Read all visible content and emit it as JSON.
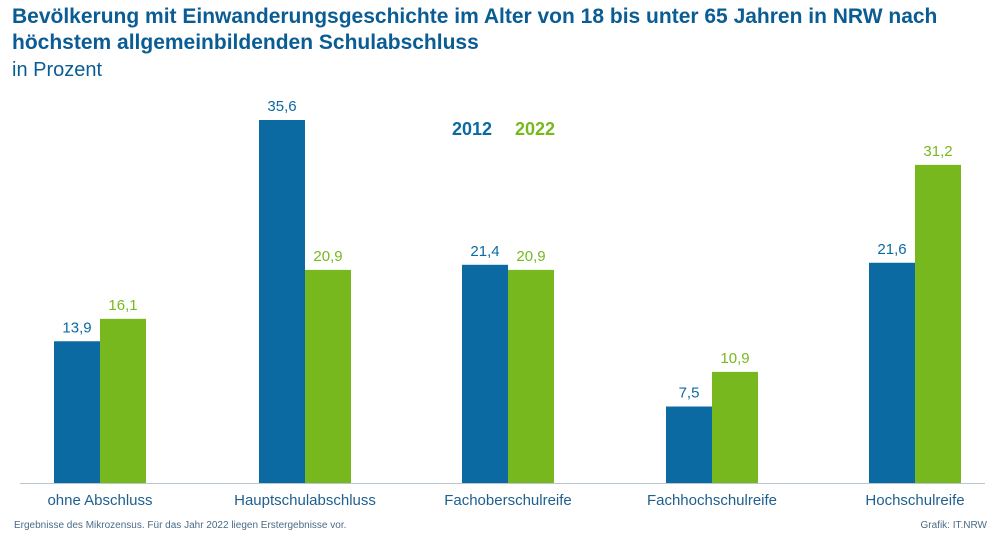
{
  "chart_data": {
    "type": "bar",
    "title": "Bevölkerung mit Einwanderungsgeschichte im Alter von 18 bis unter 65 Jahren in NRW nach höchstem allgemeinbildenden Schulabschluss",
    "subtitle": "in Prozent",
    "categories": [
      "ohne Abschluss",
      "Hauptschulabschluss",
      "Fachoberschulreife",
      "Fachhochschulreife",
      "Hochschulreife"
    ],
    "series": [
      {
        "name": "2012",
        "color": "#0a6aa1",
        "values": [
          13.9,
          35.6,
          21.4,
          7.5,
          21.6
        ],
        "labels": [
          "13,9",
          "35,6",
          "21,4",
          "7,5",
          "21,6"
        ]
      },
      {
        "name": "2022",
        "color": "#77b81e",
        "values": [
          16.1,
          20.9,
          20.9,
          10.9,
          31.2
        ],
        "labels": [
          "16,1",
          "20,9",
          "20,9",
          "10,9",
          "31,2"
        ]
      }
    ],
    "xlabel": "",
    "ylabel": "",
    "ylim": [
      0,
      35.6
    ],
    "grid": false,
    "legend": "top-center"
  },
  "footnote": "Ergebnisse des Mikrozensus. Für das Jahr 2022 liegen Erstergebnisse vor.",
  "source": "Grafik: IT.NRW"
}
